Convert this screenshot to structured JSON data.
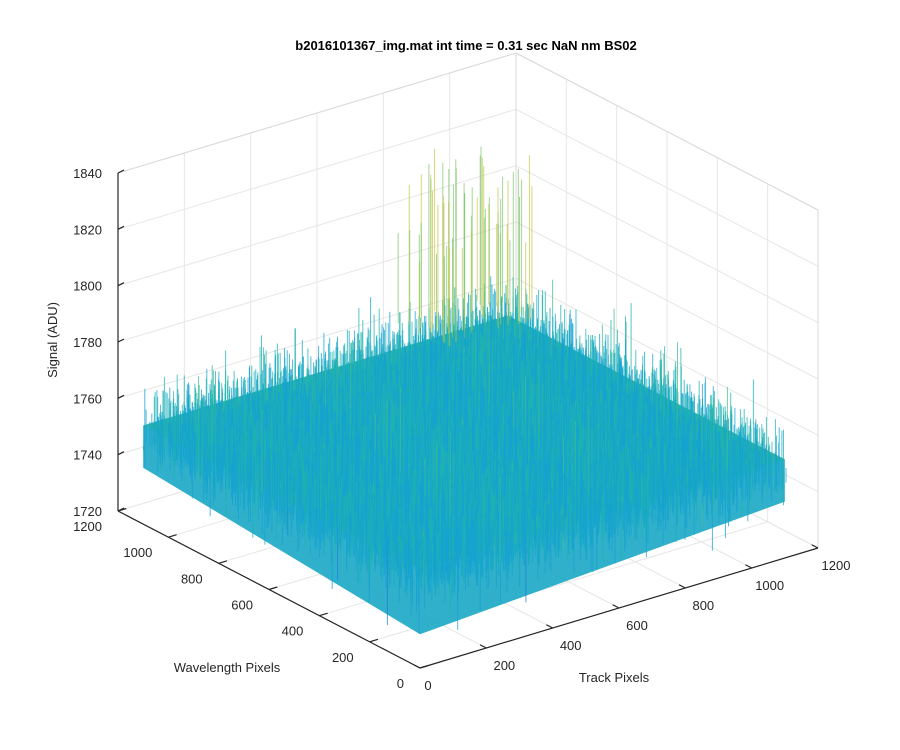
{
  "chart_data": {
    "type": "surface",
    "title": "b2016101367_img.mat int time = 0.31 sec  NaN nm BS02",
    "xlabel": "Track Pixels",
    "ylabel": "Wavelength Pixels",
    "zlabel": "Signal (ADU)",
    "xlim": [
      0,
      1200
    ],
    "ylim": [
      0,
      1200
    ],
    "zlim": [
      1720,
      1840
    ],
    "x_ticks": [
      "0",
      "200",
      "400",
      "600",
      "800",
      "1000",
      "1200"
    ],
    "y_ticks": [
      "0",
      "200",
      "400",
      "600",
      "800",
      "1000",
      "1200"
    ],
    "z_ticks": [
      "1720",
      "1740",
      "1760",
      "1780",
      "1800",
      "1820",
      "1840"
    ],
    "grid": true,
    "surface": {
      "x_range": [
        0,
        1100
      ],
      "y_range": [
        0,
        1100
      ],
      "mean": 1755,
      "noise_min": 1725,
      "noise_max": 1830,
      "colormap": [
        "#1f7fd8",
        "#16a3d0",
        "#1fb3b0",
        "#3fbf8e",
        "#7cc56a",
        "#c4c44a"
      ]
    }
  }
}
